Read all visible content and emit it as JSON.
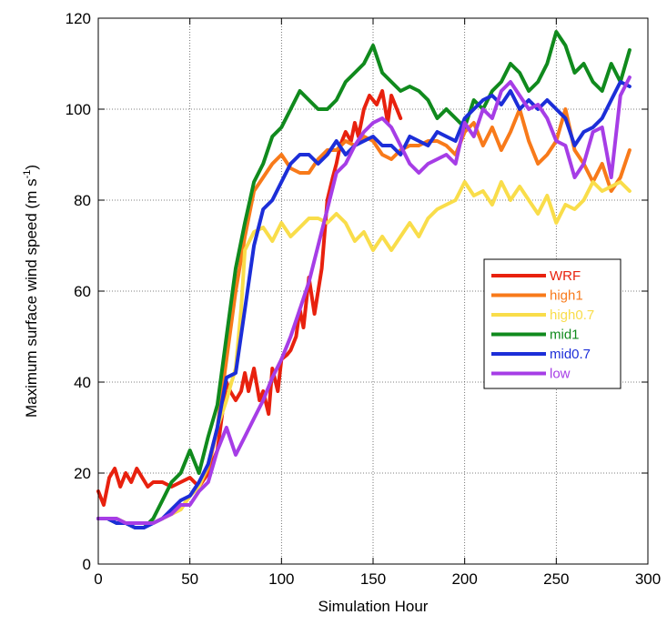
{
  "chart_data": {
    "type": "line",
    "title": "",
    "xlabel": "Simulation Hour",
    "ylabel": "Maximum surface wind speed (m s",
    "ylabel_superscript": "-1",
    "ylabel_close": ")",
    "xlim": [
      0,
      300
    ],
    "ylim": [
      0,
      120
    ],
    "xticks": [
      0,
      50,
      100,
      150,
      200,
      250,
      300
    ],
    "yticks": [
      0,
      20,
      40,
      60,
      80,
      100,
      120
    ],
    "grid": true,
    "legend_position": "right-center",
    "series": [
      {
        "name": "WRF",
        "color": "#e8210e",
        "x": [
          0,
          3,
          6,
          9,
          12,
          15,
          18,
          21,
          24,
          27,
          30,
          35,
          40,
          45,
          50,
          55,
          60,
          65,
          70,
          72,
          75,
          78,
          80,
          82,
          85,
          88,
          90,
          93,
          95,
          98,
          100,
          103,
          105,
          108,
          110,
          112,
          115,
          118,
          120,
          122,
          125,
          128,
          130,
          132,
          135,
          138,
          140,
          142,
          145,
          148,
          150,
          152,
          155,
          158,
          160,
          163,
          165
        ],
        "y": [
          16,
          13,
          19,
          21,
          17,
          20,
          18,
          21,
          19,
          17,
          18,
          18,
          17,
          18,
          19,
          17,
          20,
          25,
          40,
          38,
          36,
          38,
          42,
          38,
          43,
          36,
          38,
          33,
          43,
          38,
          45,
          46,
          47,
          50,
          56,
          52,
          63,
          55,
          60,
          65,
          80,
          85,
          88,
          92,
          95,
          93,
          97,
          94,
          100,
          103,
          102,
          101,
          104,
          97,
          103,
          100,
          98
        ]
      },
      {
        "name": "high1",
        "color": "#f87a1a",
        "x": [
          0,
          5,
          10,
          15,
          20,
          25,
          30,
          35,
          40,
          45,
          50,
          55,
          60,
          65,
          70,
          75,
          80,
          85,
          90,
          95,
          100,
          105,
          110,
          115,
          120,
          125,
          130,
          135,
          140,
          145,
          150,
          155,
          160,
          165,
          170,
          175,
          180,
          185,
          190,
          195,
          200,
          205,
          210,
          215,
          220,
          225,
          230,
          235,
          240,
          245,
          250,
          255,
          260,
          265,
          270,
          275,
          280,
          285,
          290
        ],
        "y": [
          10,
          10,
          10,
          9,
          9,
          9,
          9,
          10,
          11,
          12,
          15,
          17,
          21,
          30,
          45,
          60,
          72,
          82,
          85,
          88,
          90,
          87,
          86,
          86,
          89,
          91,
          91,
          93,
          92,
          94,
          93,
          90,
          89,
          91,
          92,
          92,
          93,
          93,
          92,
          90,
          95,
          97,
          92,
          96,
          91,
          95,
          100,
          93,
          88,
          90,
          93,
          100,
          91,
          88,
          84,
          88,
          82,
          85,
          91
        ]
      },
      {
        "name": "high0.7",
        "color": "#f9dd4a",
        "x": [
          0,
          5,
          10,
          15,
          20,
          25,
          30,
          35,
          40,
          45,
          50,
          55,
          60,
          65,
          70,
          72,
          75,
          78,
          80,
          85,
          90,
          95,
          100,
          105,
          110,
          115,
          120,
          125,
          130,
          135,
          140,
          145,
          150,
          155,
          160,
          165,
          170,
          175,
          180,
          185,
          190,
          195,
          200,
          205,
          210,
          215,
          220,
          225,
          230,
          235,
          240,
          245,
          250,
          255,
          260,
          265,
          270,
          275,
          280,
          285,
          290
        ],
        "y": [
          10,
          10,
          10,
          9,
          9,
          9,
          9,
          10,
          11,
          12,
          15,
          17,
          22,
          30,
          36,
          39,
          43,
          56,
          69,
          73,
          74,
          71,
          75,
          72,
          74,
          76,
          76,
          75,
          77,
          75,
          71,
          73,
          69,
          72,
          69,
          72,
          75,
          72,
          76,
          78,
          79,
          80,
          84,
          81,
          82,
          79,
          84,
          80,
          83,
          80,
          77,
          81,
          75,
          79,
          78,
          80,
          84,
          82,
          83,
          84,
          82
        ]
      },
      {
        "name": "mid1",
        "color": "#108a1d",
        "x": [
          0,
          5,
          10,
          15,
          20,
          25,
          30,
          35,
          40,
          45,
          50,
          55,
          60,
          65,
          70,
          75,
          80,
          85,
          90,
          95,
          100,
          105,
          110,
          115,
          120,
          125,
          130,
          135,
          140,
          145,
          150,
          155,
          160,
          165,
          170,
          175,
          180,
          185,
          190,
          195,
          200,
          205,
          210,
          215,
          220,
          225,
          230,
          235,
          240,
          245,
          250,
          255,
          260,
          265,
          270,
          275,
          280,
          285,
          290
        ],
        "y": [
          10,
          10,
          9,
          9,
          8,
          8,
          10,
          14,
          18,
          20,
          25,
          20,
          28,
          35,
          50,
          65,
          75,
          84,
          88,
          94,
          96,
          100,
          104,
          102,
          100,
          100,
          102,
          106,
          108,
          110,
          114,
          108,
          106,
          104,
          105,
          104,
          102,
          98,
          100,
          98,
          96,
          102,
          100,
          104,
          106,
          110,
          108,
          104,
          106,
          110,
          117,
          114,
          108,
          110,
          106,
          104,
          110,
          106,
          113
        ]
      },
      {
        "name": "mid0.7",
        "color": "#1c2ed8",
        "x": [
          0,
          5,
          10,
          15,
          20,
          25,
          30,
          35,
          40,
          45,
          50,
          55,
          60,
          65,
          70,
          75,
          80,
          85,
          90,
          95,
          100,
          105,
          110,
          115,
          120,
          125,
          130,
          135,
          140,
          145,
          150,
          155,
          160,
          165,
          170,
          175,
          180,
          185,
          190,
          195,
          200,
          205,
          210,
          215,
          220,
          225,
          230,
          235,
          240,
          245,
          250,
          255,
          260,
          265,
          270,
          275,
          280,
          285,
          290
        ],
        "y": [
          10,
          10,
          9,
          9,
          8,
          8,
          9,
          10,
          12,
          14,
          15,
          18,
          22,
          30,
          41,
          42,
          56,
          70,
          78,
          80,
          84,
          88,
          90,
          90,
          88,
          90,
          93,
          90,
          92,
          93,
          94,
          92,
          92,
          90,
          94,
          93,
          92,
          95,
          94,
          93,
          98,
          100,
          102,
          103,
          101,
          104,
          100,
          102,
          100,
          102,
          100,
          98,
          92,
          95,
          96,
          98,
          102,
          106,
          105
        ]
      },
      {
        "name": "low",
        "color": "#a63de6",
        "x": [
          0,
          5,
          10,
          15,
          20,
          25,
          30,
          35,
          40,
          45,
          50,
          55,
          60,
          65,
          70,
          75,
          80,
          85,
          90,
          95,
          100,
          105,
          110,
          115,
          120,
          125,
          130,
          135,
          140,
          145,
          150,
          155,
          160,
          165,
          170,
          175,
          180,
          185,
          190,
          195,
          200,
          205,
          210,
          215,
          220,
          225,
          230,
          235,
          240,
          245,
          250,
          255,
          260,
          265,
          270,
          275,
          280,
          285,
          290
        ],
        "y": [
          10,
          10,
          10,
          9,
          9,
          9,
          9,
          10,
          11,
          13,
          13,
          16,
          18,
          25,
          30,
          24,
          28,
          32,
          36,
          41,
          45,
          50,
          56,
          62,
          70,
          78,
          86,
          88,
          92,
          95,
          97,
          98,
          96,
          92,
          88,
          86,
          88,
          89,
          90,
          88,
          97,
          94,
          100,
          98,
          104,
          106,
          103,
          100,
          101,
          98,
          93,
          92,
          85,
          88,
          95,
          96,
          85,
          103,
          107
        ]
      }
    ]
  }
}
